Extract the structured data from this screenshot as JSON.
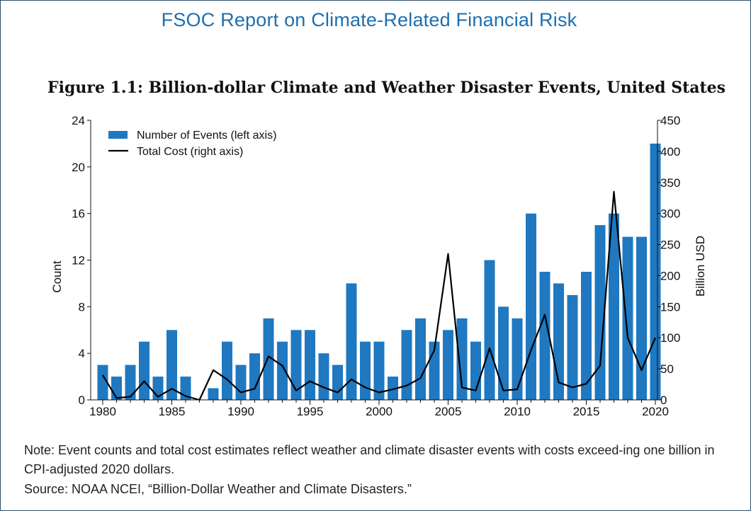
{
  "report_title": "FSOC Report on Climate-Related Financial Risk",
  "figure_title": "Figure 1.1: Billion-dollar Climate and Weather Disaster Events, United States",
  "note": "Note: Event counts and total cost estimates reflect weather and climate disaster events with costs exceed-ing one billion in CPI-adjusted 2020 dollars.",
  "source": "Source: NOAA NCEI, “Billion-Dollar Weather and Climate Disasters.”",
  "colors": {
    "bar": "#1f78c0",
    "line": "#000000",
    "title": "#1e6fb0"
  },
  "chart_data": {
    "type": "bar",
    "title": "Figure 1.1: Billion-dollar Climate and Weather Disaster Events, United States",
    "xlabel": "",
    "ylabel": "Count",
    "y2label": "Billion USD",
    "ylim": [
      0,
      24
    ],
    "y2lim": [
      0,
      450
    ],
    "yticks": [
      0,
      4,
      8,
      12,
      16,
      20,
      24
    ],
    "y2ticks": [
      0,
      50,
      100,
      150,
      200,
      250,
      300,
      350,
      400,
      450
    ],
    "xticks": [
      1980,
      1985,
      1990,
      1995,
      2000,
      2005,
      2010,
      2015,
      2020
    ],
    "legend_position": "top-left",
    "x": [
      1980,
      1981,
      1982,
      1983,
      1984,
      1985,
      1986,
      1987,
      1988,
      1989,
      1990,
      1991,
      1992,
      1993,
      1994,
      1995,
      1996,
      1997,
      1998,
      1999,
      2000,
      2001,
      2002,
      2003,
      2004,
      2005,
      2006,
      2007,
      2008,
      2009,
      2010,
      2011,
      2012,
      2013,
      2014,
      2015,
      2016,
      2017,
      2018,
      2019,
      2020
    ],
    "series": [
      {
        "name": "Number of Events (left axis)",
        "kind": "bar",
        "axis": "left",
        "values": [
          3,
          2,
          3,
          5,
          2,
          6,
          2,
          0,
          1,
          5,
          3,
          4,
          7,
          5,
          6,
          6,
          4,
          3,
          10,
          5,
          5,
          2,
          6,
          7,
          5,
          6,
          7,
          5,
          12,
          8,
          7,
          16,
          11,
          10,
          9,
          11,
          15,
          16,
          14,
          14,
          22
        ]
      },
      {
        "name": "Total Cost (right axis)",
        "kind": "line",
        "axis": "right",
        "values": [
          40,
          3,
          5,
          30,
          5,
          18,
          6,
          0,
          48,
          33,
          12,
          18,
          70,
          55,
          15,
          30,
          20,
          12,
          33,
          20,
          12,
          17,
          23,
          35,
          80,
          235,
          20,
          15,
          83,
          15,
          17,
          80,
          137,
          28,
          20,
          26,
          55,
          335,
          100,
          48,
          100
        ]
      }
    ]
  }
}
